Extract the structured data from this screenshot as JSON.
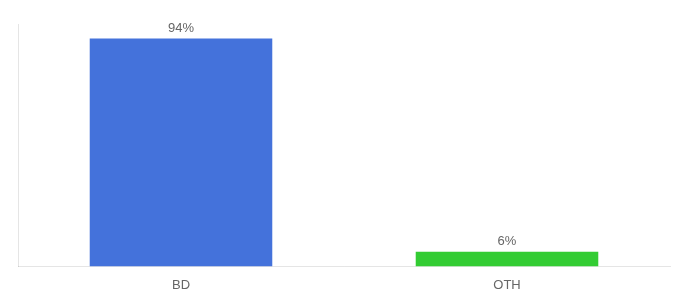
{
  "chart_data": {
    "type": "bar",
    "categories": [
      "BD",
      "OTH"
    ],
    "values": [
      94,
      6
    ],
    "colors": [
      "#4472db",
      "#33cc33"
    ],
    "ylim": [
      0,
      100
    ],
    "grid": false,
    "data_labels": true,
    "value_labels": [
      "94%",
      "6%"
    ],
    "tick_labels": "x"
  }
}
